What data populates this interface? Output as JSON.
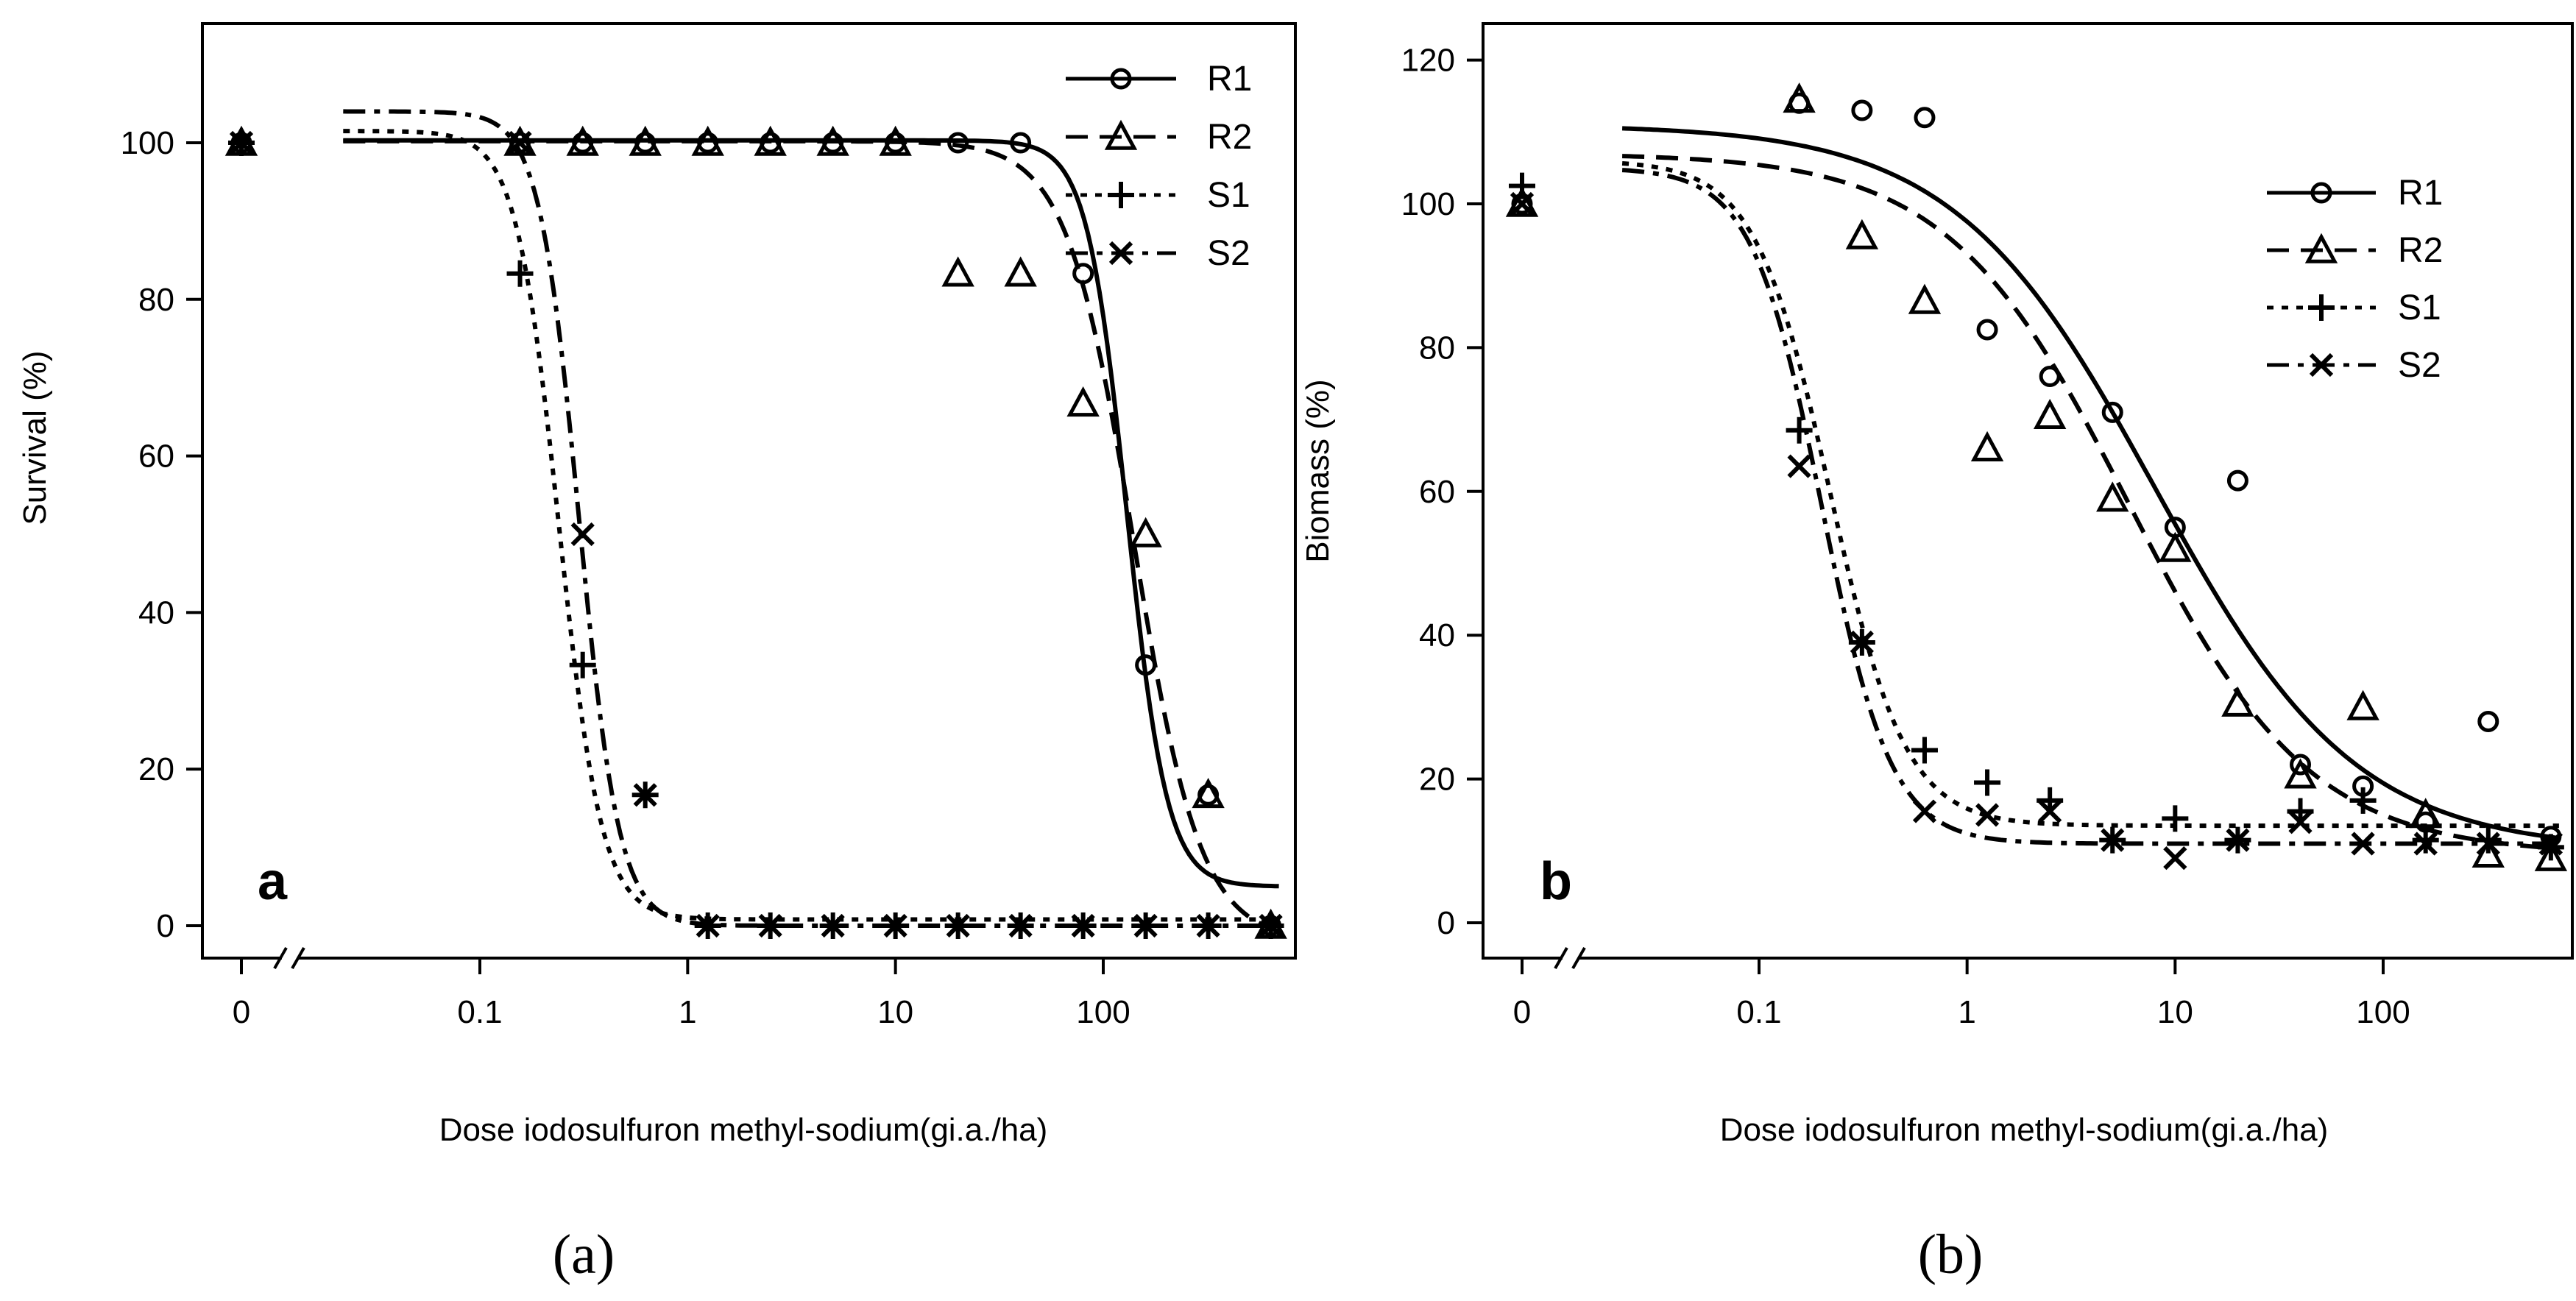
{
  "chart_data": [
    {
      "type": "scatter",
      "panel_letter": "a",
      "caption": "(a)",
      "title": "",
      "xlabel": "Dose iodosulfuron methyl-sodium(gi.a./ha)",
      "ylabel": "Survival (%)",
      "x_scale": "log with axis break at 0",
      "x_ticks": [
        "0",
        "0.1",
        "1",
        "10",
        "100"
      ],
      "y_ticks": [
        "0",
        "20",
        "40",
        "60",
        "80",
        "100"
      ],
      "xlim": [
        0.022,
        700
      ],
      "ylim": [
        -5,
        112
      ],
      "grid": false,
      "legend_position": "top-right",
      "series": [
        {
          "name": "R1",
          "marker": "circle",
          "line": "solid",
          "points": [
            [
              0,
              100
            ],
            [
              0.156,
              100
            ],
            [
              0.3125,
              100
            ],
            [
              0.625,
              100
            ],
            [
              1.25,
              100
            ],
            [
              2.5,
              100
            ],
            [
              5,
              100
            ],
            [
              10,
              100
            ],
            [
              20,
              100
            ],
            [
              40,
              100
            ],
            [
              80,
              83.3
            ],
            [
              160,
              33.3
            ],
            [
              320,
              16.7
            ],
            [
              640,
              0
            ]
          ],
          "curve": {
            "lower": 5,
            "upper": 100.3,
            "ed50": 130,
            "slope": 4.5
          }
        },
        {
          "name": "R2",
          "marker": "triangle",
          "line": "dashed",
          "points": [
            [
              0,
              100
            ],
            [
              0.156,
              100
            ],
            [
              0.3125,
              100
            ],
            [
              0.625,
              100
            ],
            [
              1.25,
              100
            ],
            [
              2.5,
              100
            ],
            [
              5,
              100
            ],
            [
              10,
              100
            ],
            [
              20,
              83.3
            ],
            [
              40,
              83.3
            ],
            [
              80,
              66.7
            ],
            [
              160,
              50
            ],
            [
              320,
              16.7
            ],
            [
              640,
              0
            ]
          ],
          "curve": {
            "lower": -2,
            "upper": 100.2,
            "ed50": 140,
            "slope": 2.7
          }
        },
        {
          "name": "S1",
          "marker": "plus",
          "line": "dotted",
          "points": [
            [
              0,
              100
            ],
            [
              0.156,
              83.3
            ],
            [
              0.3125,
              33.3
            ],
            [
              0.625,
              16.7
            ],
            [
              1.25,
              0
            ],
            [
              2.5,
              0
            ],
            [
              5,
              0
            ],
            [
              10,
              0
            ],
            [
              20,
              0
            ],
            [
              40,
              0
            ],
            [
              80,
              0
            ],
            [
              160,
              0
            ],
            [
              320,
              0
            ],
            [
              640,
              0
            ]
          ],
          "curve": {
            "lower": 0.8,
            "upper": 101.5,
            "ed50": 0.24,
            "slope": 4.2
          }
        },
        {
          "name": "S2",
          "marker": "x",
          "line": "dashdot",
          "points": [
            [
              0,
              100
            ],
            [
              0.156,
              100
            ],
            [
              0.3125,
              50
            ],
            [
              0.625,
              16.7
            ],
            [
              1.25,
              0
            ],
            [
              2.5,
              0
            ],
            [
              5,
              0
            ],
            [
              10,
              0
            ],
            [
              20,
              0
            ],
            [
              40,
              0
            ],
            [
              80,
              0
            ],
            [
              160,
              0
            ],
            [
              320,
              0
            ],
            [
              640,
              0
            ]
          ],
          "curve": {
            "lower": 0,
            "upper": 104,
            "ed50": 0.3,
            "slope": 4.5
          }
        }
      ]
    },
    {
      "type": "scatter",
      "panel_letter": "b",
      "caption": "(b)",
      "title": "",
      "xlabel": "Dose iodosulfuron methyl-sodium(gi.a./ha)",
      "ylabel": "Biomass (%)",
      "x_scale": "log with axis break at 0",
      "x_ticks": [
        "0",
        "0.1",
        "1",
        "10",
        "100"
      ],
      "y_ticks": [
        "0",
        "20",
        "40",
        "60",
        "80",
        "100",
        "120"
      ],
      "xlim": [
        0.022,
        700
      ],
      "ylim": [
        -5,
        125
      ],
      "grid": false,
      "legend_position": "top-right",
      "series": [
        {
          "name": "R1",
          "marker": "circle",
          "line": "solid",
          "points": [
            [
              0,
              100
            ],
            [
              0.156,
              114
            ],
            [
              0.3125,
              113
            ],
            [
              0.625,
              112
            ],
            [
              1.25,
              82.5
            ],
            [
              2.5,
              76
            ],
            [
              5,
              71
            ],
            [
              10,
              55
            ],
            [
              20,
              61.5
            ],
            [
              40,
              22
            ],
            [
              80,
              19
            ],
            [
              160,
              14
            ],
            [
              320,
              28
            ],
            [
              640,
              12
            ]
          ],
          "curve": {
            "lower": 10,
            "upper": 111,
            "ed50": 8,
            "slope": 0.9
          }
        },
        {
          "name": "R2",
          "marker": "triangle",
          "line": "dashed",
          "points": [
            [
              0,
              100
            ],
            [
              0.156,
              114.5
            ],
            [
              0.3125,
              95.5
            ],
            [
              0.625,
              86.5
            ],
            [
              1.25,
              66
            ],
            [
              2.5,
              70.5
            ],
            [
              5,
              59
            ],
            [
              10,
              52
            ],
            [
              20,
              30.5
            ],
            [
              40,
              20.5
            ],
            [
              80,
              30
            ],
            [
              160,
              15
            ],
            [
              320,
              9.5
            ],
            [
              640,
              9
            ]
          ],
          "curve": {
            "lower": 9.5,
            "upper": 107,
            "ed50": 6,
            "slope": 1.0
          }
        },
        {
          "name": "S1",
          "marker": "plus",
          "line": "dotted",
          "points": [
            [
              0,
              102.5
            ],
            [
              0.156,
              68.5
            ],
            [
              0.3125,
              39
            ],
            [
              0.625,
              24
            ],
            [
              1.25,
              19.5
            ],
            [
              2.5,
              17
            ],
            [
              5,
              11.5
            ],
            [
              10,
              14.5
            ],
            [
              20,
              11.5
            ],
            [
              40,
              15.5
            ],
            [
              80,
              17
            ],
            [
              160,
              11.5
            ],
            [
              320,
              11.5
            ],
            [
              640,
              10.5
            ]
          ],
          "curve": {
            "lower": 13.5,
            "upper": 106,
            "ed50": 0.22,
            "slope": 2.4
          }
        },
        {
          "name": "S2",
          "marker": "x",
          "line": "dashdot",
          "points": [
            [
              0,
              100
            ],
            [
              0.156,
              63.5
            ],
            [
              0.3125,
              39
            ],
            [
              0.625,
              15.5
            ],
            [
              1.25,
              15
            ],
            [
              2.5,
              15.5
            ],
            [
              5,
              11.5
            ],
            [
              10,
              9
            ],
            [
              20,
              11.5
            ],
            [
              40,
              14
            ],
            [
              80,
              11
            ],
            [
              160,
              11
            ],
            [
              320,
              11
            ],
            [
              640,
              11
            ]
          ],
          "curve": {
            "lower": 11,
            "upper": 105,
            "ed50": 0.2,
            "slope": 2.6
          }
        }
      ]
    }
  ]
}
